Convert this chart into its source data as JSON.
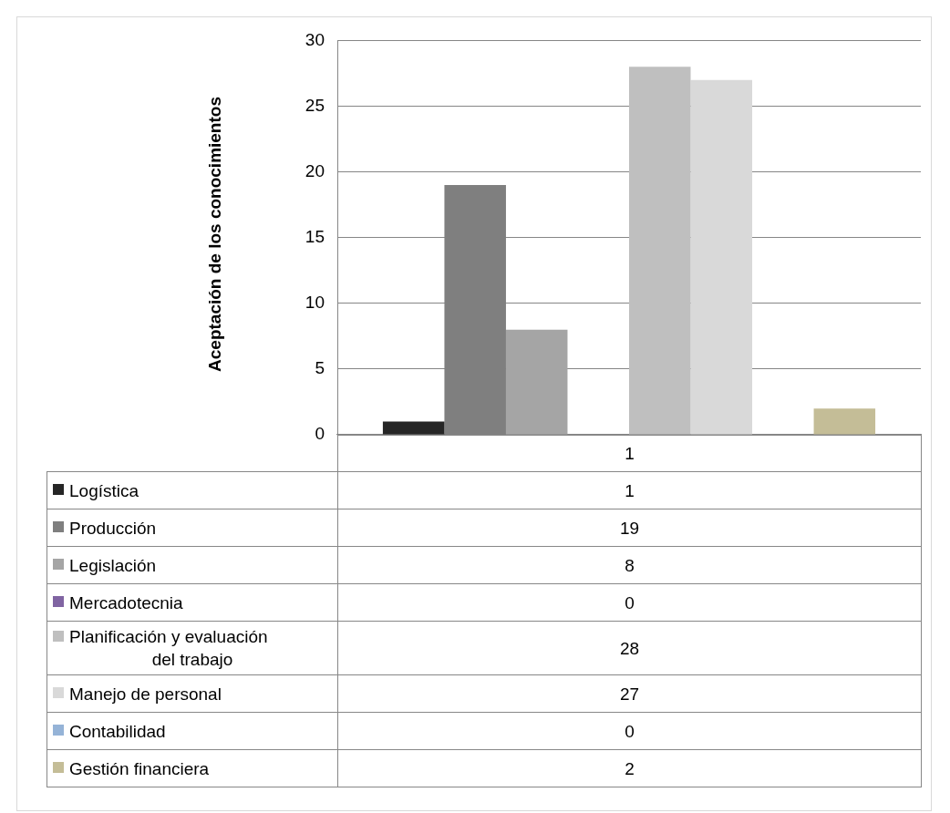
{
  "chart_data": {
    "type": "bar",
    "ylabel": "Aceptación de los conocimientos",
    "categories": [
      "1"
    ],
    "series": [
      {
        "name": "Logística",
        "color": "#262626",
        "values": [
          1
        ]
      },
      {
        "name": "Producción",
        "color": "#7f7f7f",
        "values": [
          19
        ]
      },
      {
        "name": "Legislación",
        "color": "#a5a5a5",
        "values": [
          8
        ]
      },
      {
        "name": "Mercadotecnia",
        "color": "#8064a2",
        "values": [
          0
        ]
      },
      {
        "name": "Planificación y evaluación del trabajo",
        "color": "#bfbfbf",
        "values": [
          28
        ]
      },
      {
        "name": "Manejo de personal",
        "color": "#d9d9d9",
        "values": [
          27
        ]
      },
      {
        "name": "Contabilidad",
        "color": "#95b3d7",
        "values": [
          0
        ]
      },
      {
        "name": "Gestión financiera",
        "color": "#c4bd97",
        "values": [
          2
        ]
      }
    ],
    "ylim": [
      0,
      30
    ],
    "yticks": [
      0,
      5,
      10,
      15,
      20,
      25,
      30
    ],
    "grid": "y",
    "legend": "bottom",
    "annotations": [
      "1",
      "19",
      "8",
      "0",
      "28",
      "27",
      "0",
      "2"
    ]
  }
}
